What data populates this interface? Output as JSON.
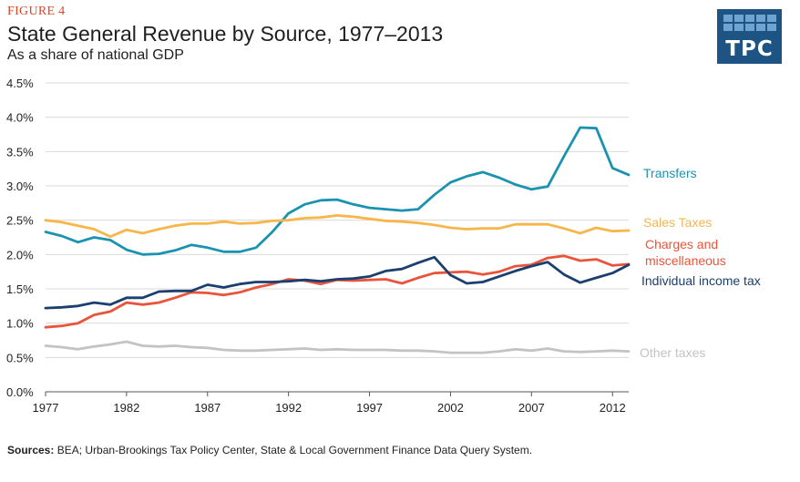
{
  "header": {
    "figure_label": "FIGURE 4",
    "title": "State General Revenue by Source, 1977–2013",
    "subtitle": "As a share of national GDP"
  },
  "logo": {
    "text": "TPC",
    "color": "#1e5483"
  },
  "footer": {
    "sources_label": "Sources:",
    "sources_text": "BEA; Urban-Brookings Tax Policy Center, State & Local Government Finance Data Query System."
  },
  "chart_data": {
    "type": "line",
    "title": "State General Revenue by Source, 1977–2013",
    "subtitle": "As a share of national GDP",
    "xlabel": "",
    "ylabel": "",
    "xlim": [
      1977,
      2013
    ],
    "ylim": [
      0,
      4.5
    ],
    "x_ticks": [
      1977,
      1982,
      1987,
      1992,
      1997,
      2002,
      2007,
      2012
    ],
    "y_ticks": [
      {
        "value": 0,
        "label": "0.0%"
      },
      {
        "value": 0.5,
        "label": "0.5%"
      },
      {
        "value": 1.0,
        "label": "1.0%"
      },
      {
        "value": 1.5,
        "label": "1.5%"
      },
      {
        "value": 2.0,
        "label": "2.0%"
      },
      {
        "value": 2.5,
        "label": "2.5%"
      },
      {
        "value": 3.0,
        "label": "3.0%"
      },
      {
        "value": 3.5,
        "label": "3.5%"
      },
      {
        "value": 4.0,
        "label": "4.0%"
      },
      {
        "value": 4.5,
        "label": "4.5%"
      }
    ],
    "grid": "horizontal",
    "legend": "inline-right",
    "x": [
      1977,
      1978,
      1979,
      1980,
      1981,
      1982,
      1983,
      1984,
      1985,
      1986,
      1987,
      1988,
      1989,
      1990,
      1991,
      1992,
      1993,
      1994,
      1995,
      1996,
      1997,
      1998,
      1999,
      2000,
      2001,
      2002,
      2003,
      2004,
      2005,
      2006,
      2007,
      2008,
      2009,
      2010,
      2011,
      2012,
      2013
    ],
    "series": [
      {
        "name": "Transfers",
        "color": "#1a93b0",
        "values": [
          2.33,
          2.27,
          2.18,
          2.25,
          2.21,
          2.07,
          2.0,
          2.01,
          2.06,
          2.14,
          2.1,
          2.04,
          2.04,
          2.1,
          2.33,
          2.6,
          2.73,
          2.79,
          2.8,
          2.73,
          2.68,
          2.66,
          2.64,
          2.66,
          2.87,
          3.05,
          3.14,
          3.2,
          3.12,
          3.02,
          2.95,
          2.99,
          3.43,
          3.85,
          3.84,
          3.26,
          3.16
        ]
      },
      {
        "name": "Sales Taxes",
        "color": "#f6b64a",
        "values": [
          2.5,
          2.47,
          2.42,
          2.37,
          2.26,
          2.36,
          2.31,
          2.37,
          2.42,
          2.45,
          2.45,
          2.48,
          2.45,
          2.46,
          2.49,
          2.5,
          2.53,
          2.54,
          2.57,
          2.55,
          2.52,
          2.49,
          2.48,
          2.46,
          2.43,
          2.39,
          2.37,
          2.38,
          2.38,
          2.44,
          2.44,
          2.44,
          2.38,
          2.31,
          2.39,
          2.34,
          2.35
        ]
      },
      {
        "name": "Charges and miscellaneous",
        "color": "#e8553a",
        "values": [
          0.94,
          0.96,
          1.0,
          1.12,
          1.17,
          1.3,
          1.27,
          1.3,
          1.37,
          1.45,
          1.44,
          1.41,
          1.45,
          1.52,
          1.57,
          1.64,
          1.62,
          1.57,
          1.63,
          1.62,
          1.63,
          1.64,
          1.58,
          1.66,
          1.73,
          1.74,
          1.75,
          1.71,
          1.75,
          1.83,
          1.85,
          1.95,
          1.98,
          1.91,
          1.93,
          1.84,
          1.86
        ]
      },
      {
        "name": "Individual income tax",
        "color": "#1b3f6e",
        "values": [
          1.22,
          1.23,
          1.25,
          1.3,
          1.27,
          1.37,
          1.37,
          1.46,
          1.47,
          1.47,
          1.56,
          1.52,
          1.57,
          1.6,
          1.6,
          1.61,
          1.63,
          1.61,
          1.64,
          1.65,
          1.68,
          1.76,
          1.79,
          1.88,
          1.96,
          1.7,
          1.58,
          1.6,
          1.68,
          1.76,
          1.83,
          1.89,
          1.71,
          1.59,
          1.66,
          1.73,
          1.85
        ]
      },
      {
        "name": "Other taxes",
        "color": "#c3c3c3",
        "values": [
          0.67,
          0.65,
          0.62,
          0.66,
          0.69,
          0.73,
          0.67,
          0.66,
          0.67,
          0.65,
          0.64,
          0.61,
          0.6,
          0.6,
          0.61,
          0.62,
          0.63,
          0.61,
          0.62,
          0.61,
          0.61,
          0.61,
          0.6,
          0.6,
          0.59,
          0.57,
          0.57,
          0.57,
          0.59,
          0.62,
          0.6,
          0.63,
          0.59,
          0.58,
          0.59,
          0.6,
          0.59
        ]
      }
    ],
    "series_labels": [
      {
        "series": "Transfers",
        "lines": [
          "Transfers"
        ]
      },
      {
        "series": "Sales Taxes",
        "lines": [
          "Sales Taxes"
        ]
      },
      {
        "series": "Charges and miscellaneous",
        "lines": [
          "Charges and",
          "miscellaneous"
        ]
      },
      {
        "series": "Individual income tax",
        "lines": [
          "Individual income tax"
        ]
      },
      {
        "series": "Other taxes",
        "lines": [
          "Other taxes"
        ]
      }
    ]
  }
}
